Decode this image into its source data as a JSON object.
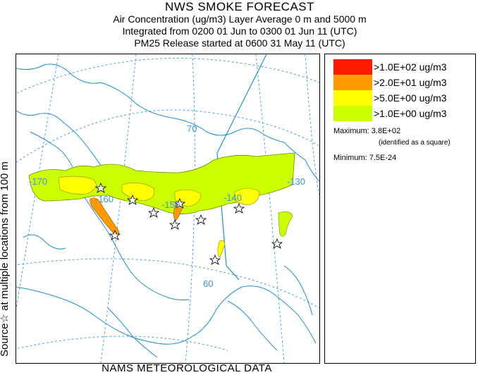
{
  "header": {
    "title": "NWS SMOKE FORECAST",
    "line2": "Air Concentration (ug/m3) Layer Average    0 m and  5000 m",
    "line3": "Integrated from 0200 01 Jun to 0300 01 Jun 11 (UTC)",
    "line4": "PM25 Release started at 0600 31 May 11 (UTC)"
  },
  "side_label": "Source☆   at multiple locations    from   100 m",
  "footer": "NAMS METEOROLOGICAL DATA",
  "map": {
    "grid_labels": {
      "lat70": "70",
      "lat60": "60",
      "lon170": "-170",
      "lon160": "-160",
      "lon150": "-150",
      "lon140": "-140",
      "lon130": "-130"
    }
  },
  "legend": {
    "items": [
      {
        "label": ">1.0E+02 ug/m3",
        "color": "#ff1a00"
      },
      {
        "label": ">2.0E+01 ug/m3",
        "color": "#ff9900"
      },
      {
        "label": ">5.0E+00 ug/m3",
        "color": "#ffff00"
      },
      {
        "label": ">1.0E+00 ug/m3",
        "color": "#ccff00"
      }
    ],
    "maximum": "Maximum: 3.8E+02",
    "maximum_note": "(identified as a square)",
    "minimum": "Minimum: 7.5E-24"
  }
}
